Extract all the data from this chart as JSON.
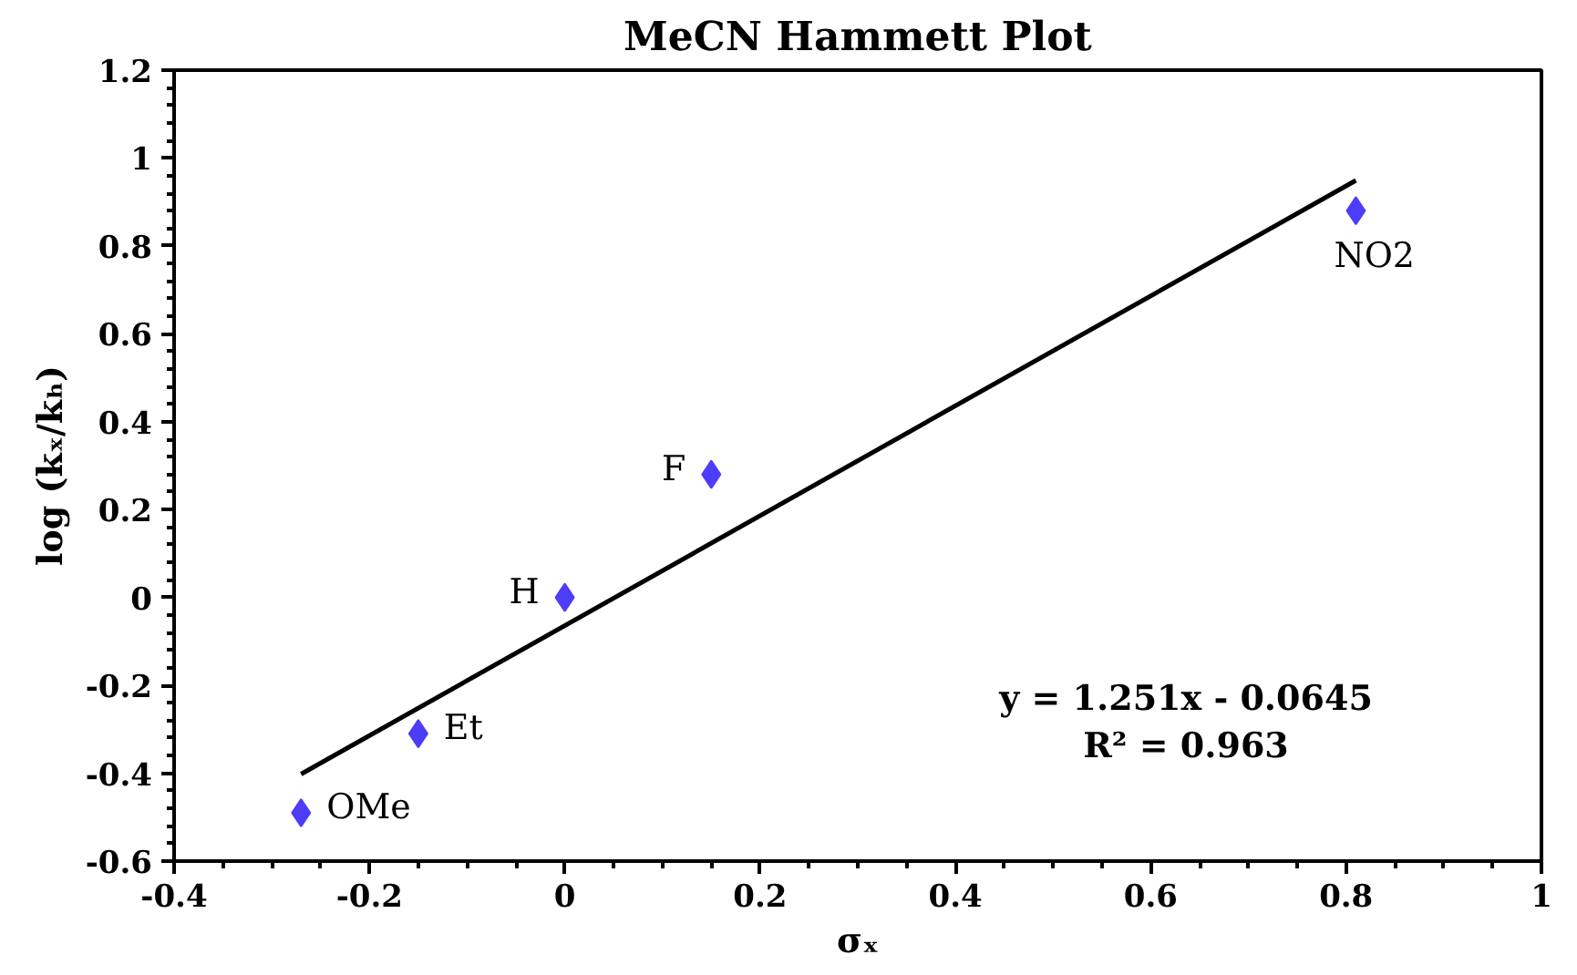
{
  "chart_data": {
    "type": "scatter",
    "title": "MeCN Hammett Plot",
    "xlabel": "σₓ",
    "ylabel": "log (kₓ/kₕ)",
    "series": [
      {
        "color": "#4d3df7",
        "marker": "diamond",
        "x": [
          -0.27,
          -0.15,
          0,
          0.15,
          0.81
        ],
        "values": [
          -0.49,
          -0.31,
          0,
          0.28,
          0.88
        ]
      },
      {
        "type": "line",
        "color": "#000000",
        "line_style": "solid",
        "marker": "none",
        "x": [
          -0.27,
          0.81
        ],
        "values": [
          -0.402,
          0.949
        ]
      }
    ],
    "annotations": [
      {
        "text": "OMe",
        "x": -0.27,
        "y": -0.49
      },
      {
        "text": "Et",
        "x": -0.15,
        "y": -0.31
      },
      {
        "text": "H",
        "x": 0,
        "y": 0
      },
      {
        "text": "F",
        "x": 0.15,
        "y": 0.28
      },
      {
        "text": "NO2",
        "x": 0.81,
        "y": 0.88
      },
      "y = 1.251x - 0.0645",
      "R² = 0.963"
    ],
    "xlim": [
      -0.4,
      1
    ],
    "xticks": [
      -0.4,
      -0.2,
      0,
      0.2,
      0.4,
      0.6,
      0.8,
      1
    ],
    "ylim": [
      -0.6,
      1.2
    ],
    "yticks": [
      -0.6,
      -0.4,
      -0.2,
      0,
      0.2,
      0.4,
      0.6,
      0.8,
      1,
      1.2
    ],
    "grid": false
  }
}
